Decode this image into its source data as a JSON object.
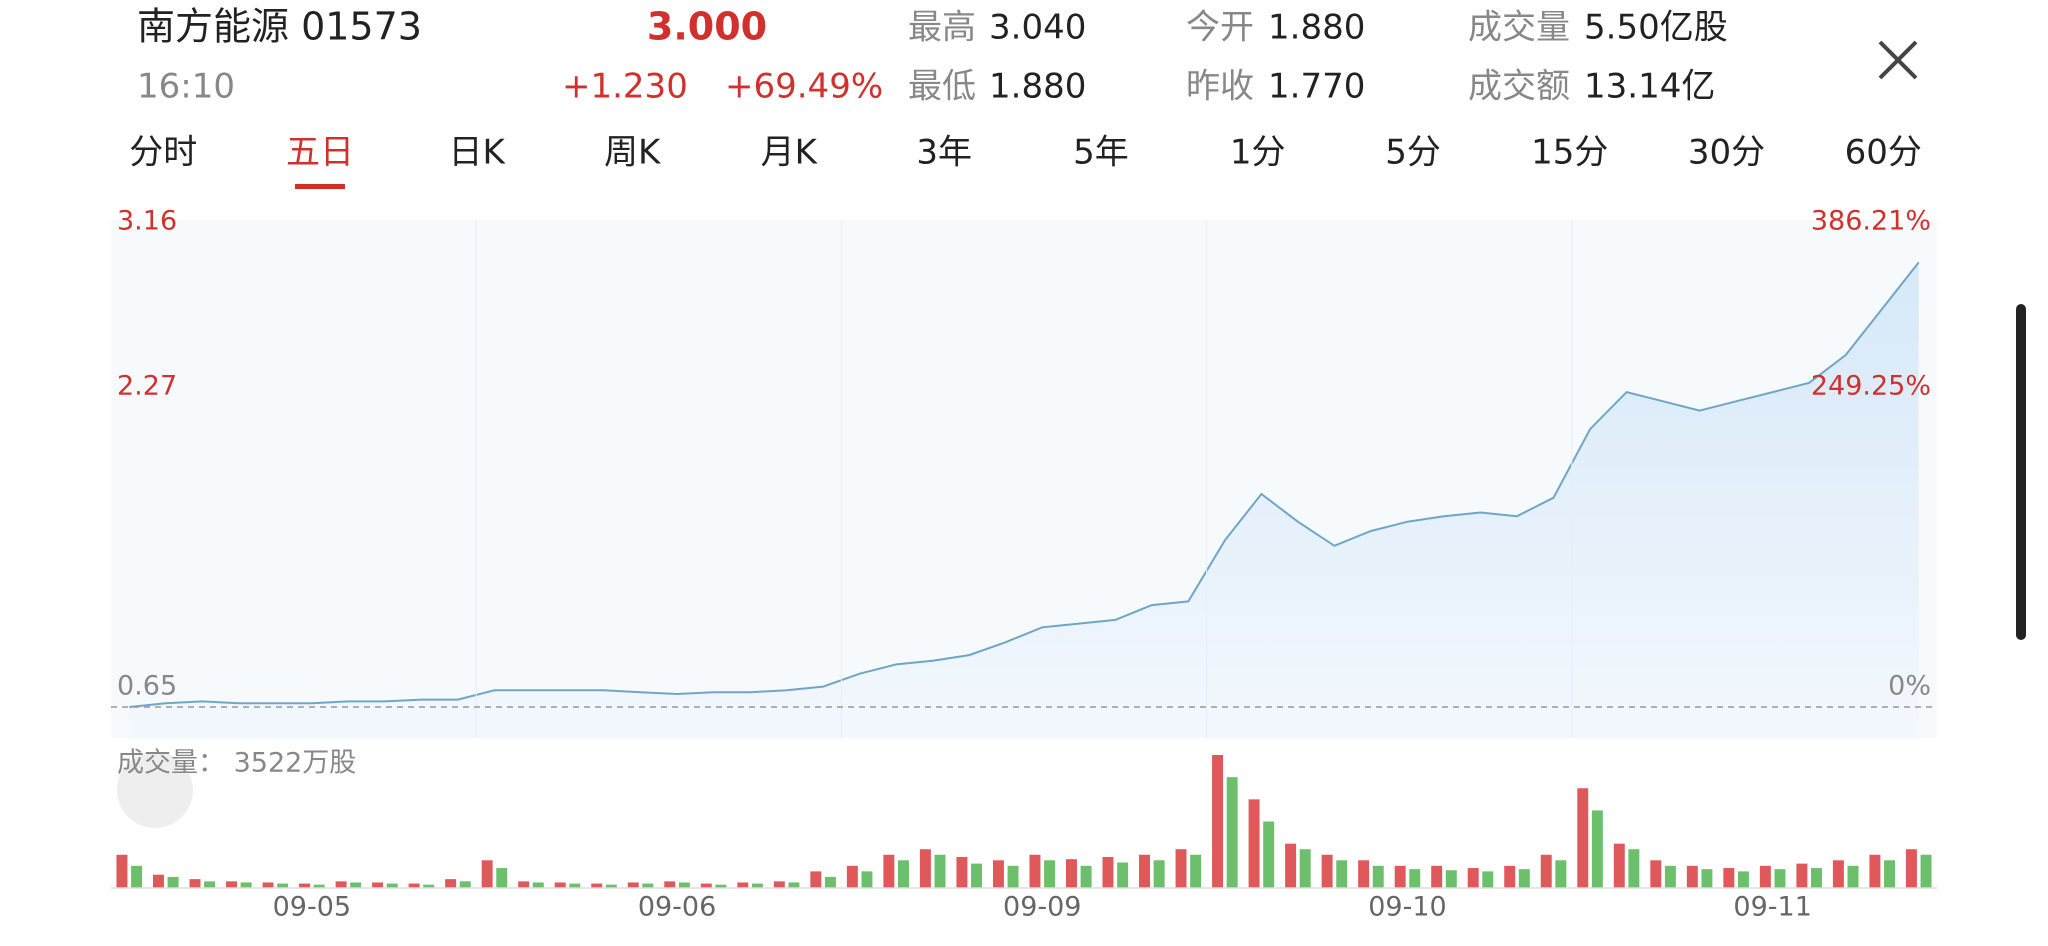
{
  "header": {
    "name": "南方能源 01573",
    "time": "16:10",
    "price": "3.000",
    "change": "+1.230",
    "change_pct": "+69.49%",
    "stats": [
      {
        "label": "最高",
        "value": "3.040"
      },
      {
        "label": "最低",
        "value": "1.880"
      },
      {
        "label": "今开",
        "value": "1.880"
      },
      {
        "label": "昨收",
        "value": "1.770"
      },
      {
        "label": "成交量",
        "value": "5.50亿股"
      },
      {
        "label": "成交额",
        "value": "13.14亿"
      }
    ]
  },
  "tabs": [
    "分时",
    "五日",
    "日K",
    "周K",
    "月K",
    "3年",
    "5年",
    "1分",
    "5分",
    "15分",
    "30分",
    "60分"
  ],
  "active_tab": 1,
  "chart_data": {
    "type": "line",
    "color": "#6fa6c6",
    "categories": [
      null,
      null,
      null,
      null,
      null,
      "09-05",
      null,
      null,
      null,
      null,
      null,
      null,
      null,
      null,
      null,
      "09-06",
      null,
      null,
      null,
      null,
      null,
      null,
      null,
      null,
      null,
      "09-09",
      null,
      null,
      null,
      null,
      null,
      null,
      null,
      null,
      null,
      "09-10",
      null,
      null,
      null,
      null,
      null,
      null,
      null,
      null,
      null,
      "09-11",
      null,
      null,
      null,
      null
    ],
    "values": [
      0.65,
      0.67,
      0.68,
      0.67,
      0.67,
      0.67,
      0.68,
      0.68,
      0.69,
      0.69,
      0.74,
      0.74,
      0.74,
      0.74,
      0.73,
      0.72,
      0.73,
      0.73,
      0.74,
      0.76,
      0.83,
      0.88,
      0.9,
      0.93,
      1.0,
      1.08,
      1.1,
      1.12,
      1.2,
      1.22,
      1.55,
      1.8,
      1.65,
      1.52,
      1.6,
      1.65,
      1.68,
      1.7,
      1.68,
      1.78,
      2.15,
      2.35,
      2.3,
      2.25,
      2.3,
      2.35,
      2.4,
      2.55,
      2.8,
      3.05
    ],
    "ylim": [
      0.65,
      3.16
    ],
    "yticks": [
      0.65,
      2.27,
      3.16
    ],
    "y2lim": [
      0,
      386.21
    ],
    "y2ticks": [
      {
        "value": 0,
        "label": "0%"
      },
      {
        "value": 249.25,
        "label": "249.25%"
      },
      {
        "value": 386.21,
        "label": "386.21%"
      }
    ],
    "volume": {
      "label": "成交量： 3522万股",
      "up": {
        "color": "#e0595a",
        "values": [
          300,
          120,
          80,
          60,
          50,
          40,
          60,
          50,
          40,
          80,
          250,
          60,
          50,
          40,
          50,
          60,
          40,
          50,
          60,
          150,
          200,
          300,
          350,
          280,
          250,
          300,
          260,
          280,
          300,
          350,
          1200,
          800,
          400,
          300,
          250,
          200,
          200,
          180,
          200,
          300,
          900,
          400,
          250,
          200,
          180,
          200,
          220,
          250,
          300,
          350
        ]
      },
      "down": {
        "color": "#6cc06c",
        "values": [
          200,
          100,
          60,
          50,
          40,
          30,
          50,
          40,
          30,
          60,
          180,
          50,
          40,
          30,
          40,
          50,
          30,
          40,
          50,
          100,
          150,
          250,
          300,
          220,
          200,
          250,
          200,
          230,
          250,
          300,
          1000,
          600,
          350,
          250,
          200,
          170,
          160,
          150,
          170,
          250,
          700,
          350,
          200,
          170,
          150,
          170,
          180,
          200,
          250,
          300
        ]
      }
    }
  }
}
